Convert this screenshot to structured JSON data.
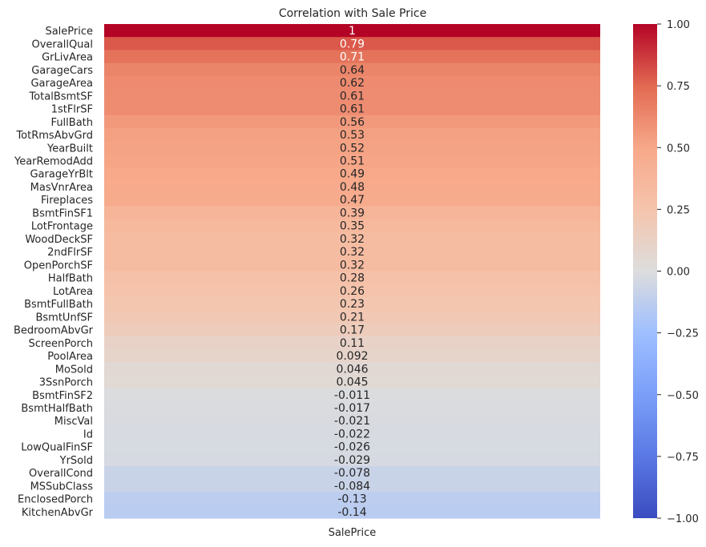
{
  "chart_data": {
    "type": "heatmap",
    "title": "Correlation with Sale Price",
    "xlabel": "",
    "ylabel": "",
    "x_categories": [
      "SalePrice"
    ],
    "y_categories": [
      "SalePrice",
      "OverallQual",
      "GrLivArea",
      "GarageCars",
      "GarageArea",
      "TotalBsmtSF",
      "1stFlrSF",
      "FullBath",
      "TotRmsAbvGrd",
      "YearBuilt",
      "YearRemodAdd",
      "GarageYrBlt",
      "MasVnrArea",
      "Fireplaces",
      "BsmtFinSF1",
      "LotFrontage",
      "WoodDeckSF",
      "2ndFlrSF",
      "OpenPorchSF",
      "HalfBath",
      "LotArea",
      "BsmtFullBath",
      "BsmtUnfSF",
      "BedroomAbvGr",
      "ScreenPorch",
      "PoolArea",
      "MoSold",
      "3SsnPorch",
      "BsmtFinSF2",
      "BsmtHalfBath",
      "MiscVal",
      "Id",
      "LowQualFinSF",
      "YrSold",
      "OverallCond",
      "MSSubClass",
      "EnclosedPorch",
      "KitchenAbvGr"
    ],
    "values": [
      1,
      0.79,
      0.71,
      0.64,
      0.62,
      0.61,
      0.61,
      0.56,
      0.53,
      0.52,
      0.51,
      0.49,
      0.48,
      0.47,
      0.39,
      0.35,
      0.32,
      0.32,
      0.32,
      0.28,
      0.26,
      0.23,
      0.21,
      0.17,
      0.11,
      0.092,
      0.046,
      0.045,
      -0.011,
      -0.017,
      -0.021,
      -0.022,
      -0.026,
      -0.029,
      -0.078,
      -0.084,
      -0.13,
      -0.14
    ],
    "value_labels": [
      "1",
      "0.79",
      "0.71",
      "0.64",
      "0.62",
      "0.61",
      "0.61",
      "0.56",
      "0.53",
      "0.52",
      "0.51",
      "0.49",
      "0.48",
      "0.47",
      "0.39",
      "0.35",
      "0.32",
      "0.32",
      "0.32",
      "0.28",
      "0.26",
      "0.23",
      "0.21",
      "0.17",
      "0.11",
      "0.092",
      "0.046",
      "0.045",
      "-0.011",
      "-0.017",
      "-0.021",
      "-0.022",
      "-0.026",
      "-0.029",
      "-0.078",
      "-0.084",
      "-0.13",
      "-0.14"
    ],
    "colormap": "coolwarm",
    "vmin": -1,
    "vmax": 1,
    "colorbar_ticks": [
      1.0,
      0.75,
      0.5,
      0.25,
      0.0,
      -0.25,
      -0.5,
      -0.75,
      -1.0
    ],
    "colorbar_tick_labels": [
      "1.00",
      "0.75",
      "0.50",
      "0.25",
      "0.00",
      "−0.25",
      "−0.50",
      "−0.75",
      "−1.00"
    ],
    "colorbar_position": "right",
    "grid": false
  }
}
